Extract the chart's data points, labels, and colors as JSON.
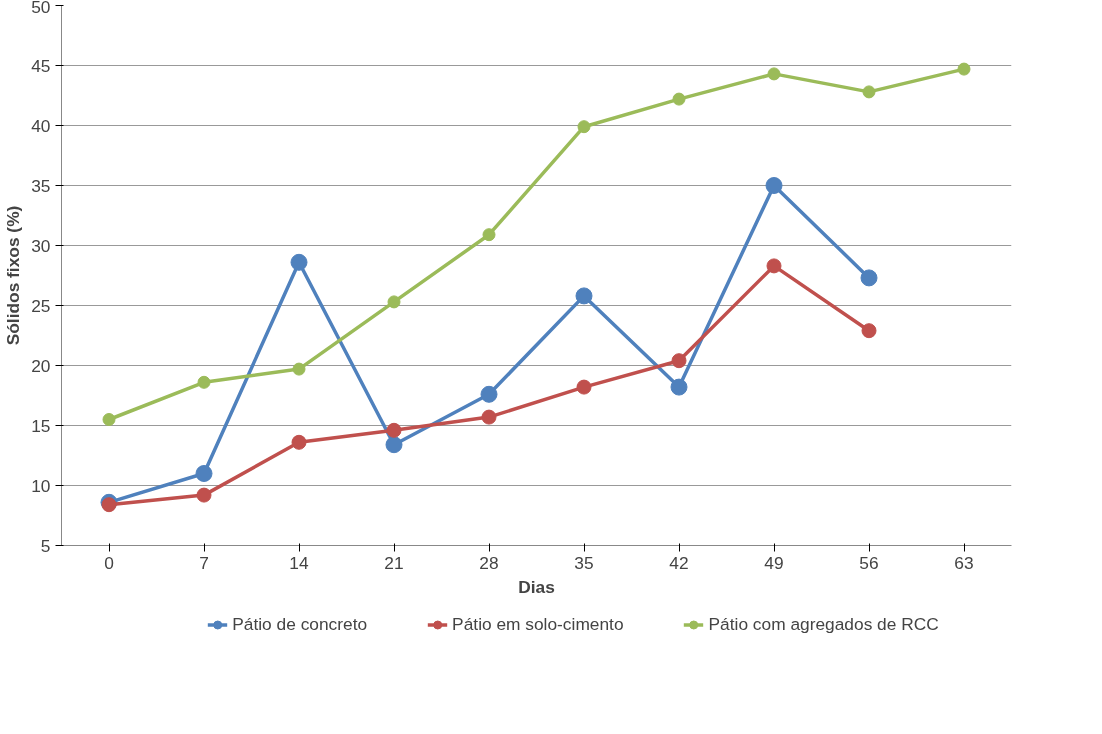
{
  "chart_data": {
    "type": "line",
    "xlabel": "Dias",
    "ylabel": "Sólidos fixos (%)",
    "categories": [
      "0",
      "7",
      "14",
      "21",
      "28",
      "35",
      "42",
      "49",
      "56",
      "63"
    ],
    "series": [
      {
        "name": "Pátio de concreto",
        "color": "#4f81bd",
        "values": [
          8.6,
          11.0,
          28.6,
          13.4,
          17.6,
          25.8,
          18.2,
          35.0,
          27.3,
          null
        ]
      },
      {
        "name": "Pátio em solo-cimento",
        "color": "#c0504d",
        "values": [
          8.4,
          9.2,
          13.6,
          14.6,
          15.7,
          18.2,
          20.4,
          28.3,
          22.9,
          null
        ]
      },
      {
        "name": "Pátio com agregados de RCC",
        "color": "#9bbb59",
        "values": [
          15.5,
          18.6,
          19.7,
          25.3,
          30.9,
          39.9,
          42.2,
          44.3,
          42.8,
          44.7
        ]
      }
    ],
    "ylim": [
      5,
      50
    ],
    "yticks": [
      5,
      10,
      15,
      20,
      25,
      30,
      35,
      40,
      45,
      50
    ],
    "grid": "y",
    "legend": "bottom",
    "marker": "circle",
    "line_style": "solid"
  }
}
